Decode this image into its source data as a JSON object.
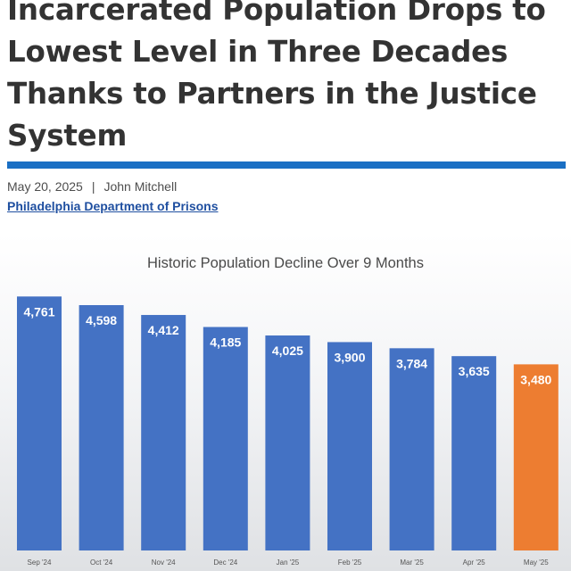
{
  "article": {
    "title": "Incarcerated Population Drops to Lowest Level in Three Decades Thanks to Partners in the Justice System",
    "date": "May 20, 2025",
    "separator": "|",
    "author": "John Mitchell",
    "department": "Philadelphia Department of Prisons"
  },
  "colors": {
    "accent": "#1a6fc4",
    "bar": "#4472c4",
    "highlight": "#ed7d31",
    "link": "#1f4fa0"
  },
  "chart_data": {
    "type": "bar",
    "title": "Historic Population Decline Over 9 Months",
    "categories": [
      "Sep '24",
      "Oct '24",
      "Nov '24",
      "Dec '24",
      "Jan '25",
      "Feb '25",
      "Mar '25",
      "Apr '25",
      "May '25"
    ],
    "values": [
      4761,
      4598,
      4412,
      4185,
      4025,
      3900,
      3784,
      3635,
      3480
    ],
    "labels": [
      "4,761",
      "4,598",
      "4,412",
      "4,185",
      "4,025",
      "3,900",
      "3,784",
      "3,635",
      "3,480"
    ],
    "highlight_index": 8,
    "xlabel": "",
    "ylabel": "",
    "ylim": [
      0,
      4800
    ],
    "grid": false,
    "legend": "none"
  }
}
